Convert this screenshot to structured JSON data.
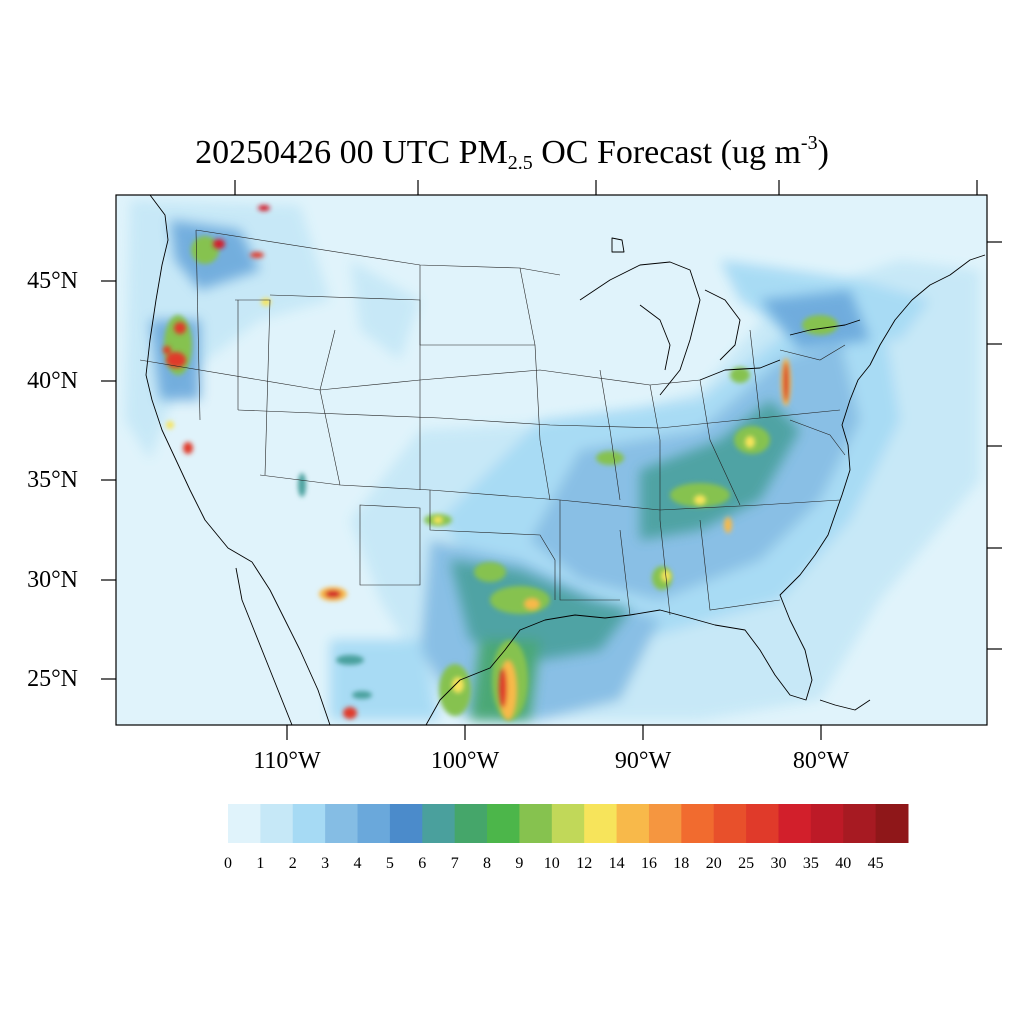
{
  "title": {
    "prefix": "20250426 00 UTC PM",
    "sub": "2.5",
    "middle": " OC Forecast (ug m",
    "sup": "-3",
    "suffix": ")"
  },
  "map": {
    "lat_labels": [
      "45°N",
      "40°N",
      "35°N",
      "30°N",
      "25°N"
    ],
    "lon_labels": [
      "110°W",
      "100°W",
      "90°W",
      "80°W"
    ]
  },
  "colorbar": {
    "labels": [
      "0",
      "1",
      "2",
      "3",
      "4",
      "5",
      "6",
      "7",
      "8",
      "9",
      "10",
      "12",
      "14",
      "16",
      "18",
      "20",
      "25",
      "30",
      "35",
      "40",
      "45"
    ],
    "colors": [
      "#e0f3fb",
      "#c6e8f7",
      "#a6daf4",
      "#85bde4",
      "#6aa8db",
      "#4b8bcb",
      "#4aa09d",
      "#45a66a",
      "#4cb64a",
      "#86c24f",
      "#c1d859",
      "#f7e45b",
      "#f8b94a",
      "#f59640",
      "#f16b2f",
      "#e8502b",
      "#e03a2a",
      "#d21f2b",
      "#bd1a27",
      "#a71a22",
      "#8f1719"
    ]
  },
  "colors": {
    "background": "#e0f3fb",
    "border": "#000000"
  }
}
